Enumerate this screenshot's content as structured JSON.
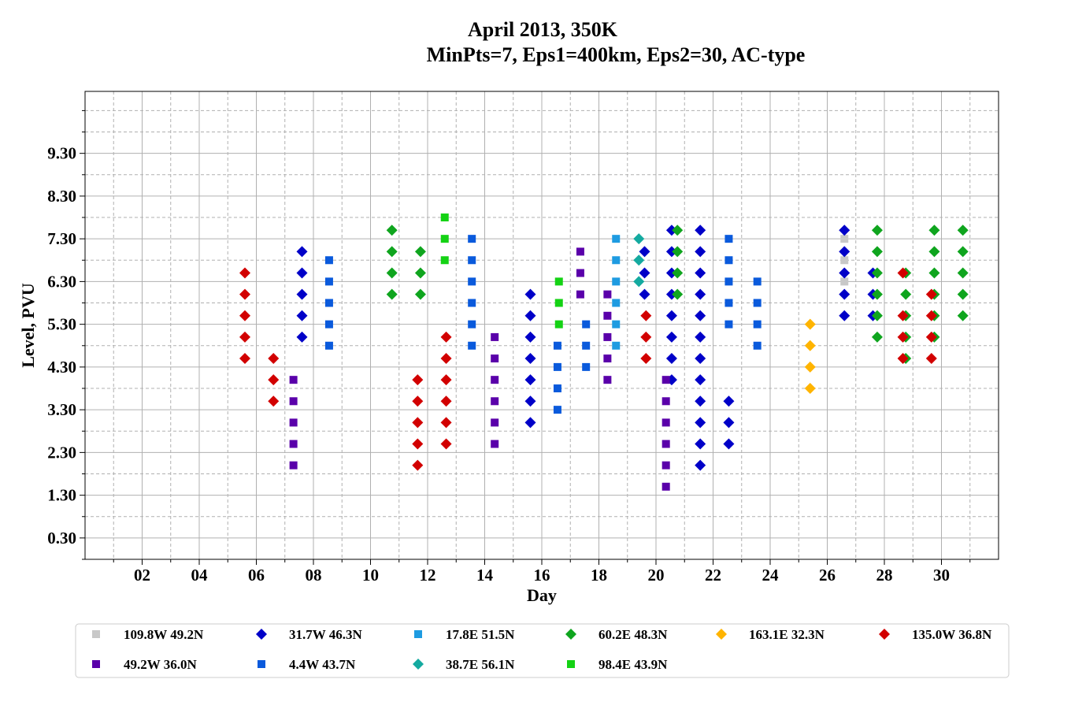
{
  "chart_data": {
    "type": "scatter",
    "title_line1": "April 2013, 350K",
    "title_line2": "MinPts=7, Eps1=400km, Eps2=30, AC-type",
    "xlabel": "Day",
    "ylabel": "Level, PVU",
    "xlim": [
      0,
      32
    ],
    "ylim": [
      -0.2,
      10.75
    ],
    "x_ticks": [
      2,
      4,
      6,
      8,
      10,
      12,
      14,
      16,
      18,
      20,
      22,
      24,
      26,
      28,
      30
    ],
    "x_tick_labels": [
      "02",
      "04",
      "06",
      "08",
      "10",
      "12",
      "14",
      "16",
      "18",
      "20",
      "22",
      "24",
      "26",
      "28",
      "30"
    ],
    "x_minor_ticks": [
      1,
      3,
      5,
      7,
      9,
      11,
      13,
      15,
      17,
      19,
      21,
      23,
      25,
      27,
      29,
      31
    ],
    "y_ticks": [
      0.3,
      1.3,
      2.3,
      3.3,
      4.3,
      5.3,
      6.3,
      7.3,
      8.3,
      9.3
    ],
    "y_tick_labels": [
      "0.30",
      "1.30",
      "2.30",
      "3.30",
      "4.30",
      "5.30",
      "6.30",
      "7.30",
      "8.30",
      "9.30"
    ],
    "y_minor_ticks": [
      -0.2,
      0.8,
      1.8,
      2.8,
      3.8,
      4.8,
      5.8,
      6.8,
      7.8,
      8.8,
      9.8,
      10.3
    ],
    "grid": true,
    "legend_position": "bottom",
    "series": [
      {
        "name": "109.8W 49.2N",
        "color": "#c8c8c8",
        "marker": "square",
        "points": [
          [
            26.6,
            7.3
          ],
          [
            26.6,
            6.8
          ],
          [
            26.6,
            6.3
          ]
        ]
      },
      {
        "name": "31.7W 46.3N",
        "color": "#0000c8",
        "marker": "diamond",
        "points": [
          [
            7.6,
            7.0
          ],
          [
            7.6,
            6.5
          ],
          [
            7.6,
            6.0
          ],
          [
            7.6,
            5.5
          ],
          [
            7.6,
            5.0
          ],
          [
            15.6,
            6.0
          ],
          [
            15.6,
            5.5
          ],
          [
            15.6,
            5.0
          ],
          [
            15.6,
            4.5
          ],
          [
            15.6,
            4.0
          ],
          [
            15.6,
            3.5
          ],
          [
            15.6,
            3.0
          ],
          [
            19.6,
            7.0
          ],
          [
            19.6,
            6.5
          ],
          [
            19.6,
            6.0
          ],
          [
            20.55,
            7.5
          ],
          [
            20.55,
            7.0
          ],
          [
            20.55,
            6.5
          ],
          [
            20.55,
            6.0
          ],
          [
            20.55,
            5.5
          ],
          [
            20.55,
            5.0
          ],
          [
            20.55,
            4.5
          ],
          [
            20.55,
            4.0
          ],
          [
            21.55,
            7.5
          ],
          [
            21.55,
            7.0
          ],
          [
            21.55,
            6.5
          ],
          [
            21.55,
            6.0
          ],
          [
            21.55,
            5.5
          ],
          [
            21.55,
            5.0
          ],
          [
            21.55,
            4.5
          ],
          [
            21.55,
            4.0
          ],
          [
            21.55,
            3.5
          ],
          [
            21.55,
            3.0
          ],
          [
            21.55,
            2.5
          ],
          [
            21.55,
            2.0
          ],
          [
            22.55,
            3.5
          ],
          [
            22.55,
            3.0
          ],
          [
            22.55,
            2.5
          ],
          [
            26.6,
            7.5
          ],
          [
            26.6,
            7.0
          ],
          [
            26.6,
            6.5
          ],
          [
            26.6,
            6.0
          ],
          [
            26.6,
            5.5
          ],
          [
            27.6,
            6.5
          ],
          [
            27.6,
            6.0
          ],
          [
            27.6,
            5.5
          ]
        ]
      },
      {
        "name": "17.8E 51.5N",
        "color": "#1e9be1",
        "marker": "square",
        "points": [
          [
            18.6,
            7.3
          ],
          [
            18.6,
            6.8
          ],
          [
            18.6,
            6.3
          ],
          [
            18.6,
            5.8
          ],
          [
            18.6,
            5.3
          ],
          [
            18.6,
            4.8
          ]
        ]
      },
      {
        "name": "60.2E 48.3N",
        "color": "#0fa51e",
        "marker": "diamond",
        "points": [
          [
            10.75,
            7.5
          ],
          [
            10.75,
            7.0
          ],
          [
            10.75,
            6.5
          ],
          [
            10.75,
            6.0
          ],
          [
            11.75,
            7.0
          ],
          [
            11.75,
            6.5
          ],
          [
            11.75,
            6.0
          ],
          [
            20.75,
            7.5
          ],
          [
            20.75,
            7.0
          ],
          [
            20.75,
            6.5
          ],
          [
            20.75,
            6.0
          ],
          [
            27.75,
            7.5
          ],
          [
            27.75,
            7.0
          ],
          [
            27.75,
            6.5
          ],
          [
            27.75,
            6.0
          ],
          [
            27.75,
            5.5
          ],
          [
            27.75,
            5.0
          ],
          [
            28.75,
            6.5
          ],
          [
            28.75,
            6.0
          ],
          [
            28.75,
            5.5
          ],
          [
            28.75,
            5.0
          ],
          [
            28.75,
            4.5
          ],
          [
            29.75,
            7.5
          ],
          [
            29.75,
            7.0
          ],
          [
            29.75,
            6.5
          ],
          [
            29.75,
            6.0
          ],
          [
            29.75,
            5.5
          ],
          [
            29.75,
            5.0
          ],
          [
            30.75,
            7.5
          ],
          [
            30.75,
            7.0
          ],
          [
            30.75,
            6.5
          ],
          [
            30.75,
            6.0
          ],
          [
            30.75,
            5.5
          ]
        ]
      },
      {
        "name": "163.1E 32.3N",
        "color": "#ffb400",
        "marker": "diamond",
        "points": [
          [
            25.4,
            5.3
          ],
          [
            25.4,
            4.8
          ],
          [
            25.4,
            4.3
          ],
          [
            25.4,
            3.8
          ]
        ]
      },
      {
        "name": "135.0W 36.8N",
        "color": "#d20000",
        "marker": "diamond",
        "points": [
          [
            5.6,
            6.5
          ],
          [
            5.6,
            6.0
          ],
          [
            5.6,
            5.5
          ],
          [
            5.6,
            5.0
          ],
          [
            5.6,
            4.5
          ],
          [
            6.6,
            4.5
          ],
          [
            6.6,
            4.0
          ],
          [
            6.6,
            3.5
          ],
          [
            11.65,
            4.0
          ],
          [
            11.65,
            3.5
          ],
          [
            11.65,
            3.0
          ],
          [
            11.65,
            2.5
          ],
          [
            11.65,
            2.0
          ],
          [
            12.65,
            5.0
          ],
          [
            12.65,
            4.5
          ],
          [
            12.65,
            4.0
          ],
          [
            12.65,
            3.5
          ],
          [
            12.65,
            3.0
          ],
          [
            12.65,
            2.5
          ],
          [
            19.65,
            5.5
          ],
          [
            19.65,
            5.0
          ],
          [
            19.65,
            4.5
          ],
          [
            28.65,
            6.5
          ],
          [
            28.65,
            5.5
          ],
          [
            28.65,
            5.0
          ],
          [
            28.65,
            4.5
          ],
          [
            29.65,
            6.0
          ],
          [
            29.65,
            5.5
          ],
          [
            29.65,
            5.0
          ],
          [
            29.65,
            4.5
          ]
        ]
      },
      {
        "name": "49.2W 36.0N",
        "color": "#5a00aa",
        "marker": "square",
        "points": [
          [
            7.3,
            4.0
          ],
          [
            7.3,
            3.5
          ],
          [
            7.3,
            3.0
          ],
          [
            7.3,
            2.5
          ],
          [
            7.3,
            2.0
          ],
          [
            14.35,
            5.0
          ],
          [
            14.35,
            4.5
          ],
          [
            14.35,
            4.0
          ],
          [
            14.35,
            3.5
          ],
          [
            14.35,
            3.0
          ],
          [
            14.35,
            2.5
          ],
          [
            17.35,
            7.0
          ],
          [
            17.35,
            6.5
          ],
          [
            17.35,
            6.0
          ],
          [
            18.3,
            6.0
          ],
          [
            18.3,
            5.5
          ],
          [
            18.3,
            5.0
          ],
          [
            18.3,
            4.5
          ],
          [
            18.3,
            4.0
          ],
          [
            20.35,
            4.0
          ],
          [
            20.35,
            3.5
          ],
          [
            20.35,
            3.0
          ],
          [
            20.35,
            2.5
          ],
          [
            20.35,
            2.0
          ],
          [
            20.35,
            1.5
          ]
        ]
      },
      {
        "name": "4.4W 43.7N",
        "color": "#0a5adc",
        "marker": "square",
        "points": [
          [
            8.55,
            6.8
          ],
          [
            8.55,
            6.3
          ],
          [
            8.55,
            5.8
          ],
          [
            8.55,
            5.3
          ],
          [
            8.55,
            4.8
          ],
          [
            13.55,
            7.3
          ],
          [
            13.55,
            6.8
          ],
          [
            13.55,
            6.3
          ],
          [
            13.55,
            5.8
          ],
          [
            13.55,
            5.3
          ],
          [
            13.55,
            4.8
          ],
          [
            16.55,
            4.8
          ],
          [
            16.55,
            4.3
          ],
          [
            16.55,
            3.8
          ],
          [
            16.55,
            3.3
          ],
          [
            17.55,
            5.3
          ],
          [
            17.55,
            4.8
          ],
          [
            17.55,
            4.3
          ],
          [
            22.55,
            7.3
          ],
          [
            22.55,
            6.8
          ],
          [
            22.55,
            6.3
          ],
          [
            22.55,
            5.8
          ],
          [
            22.55,
            5.3
          ],
          [
            23.55,
            6.3
          ],
          [
            23.55,
            5.8
          ],
          [
            23.55,
            5.3
          ],
          [
            23.55,
            4.8
          ]
        ]
      },
      {
        "name": "38.7E 56.1N",
        "color": "#14aaa0",
        "marker": "diamond",
        "points": [
          [
            19.4,
            7.3
          ],
          [
            19.4,
            6.8
          ],
          [
            19.4,
            6.3
          ]
        ]
      },
      {
        "name": "98.4E 43.9N",
        "color": "#14d214",
        "marker": "square",
        "points": [
          [
            12.6,
            7.8
          ],
          [
            12.6,
            7.3
          ],
          [
            12.6,
            6.8
          ],
          [
            16.6,
            6.3
          ],
          [
            16.6,
            5.8
          ],
          [
            16.6,
            5.3
          ]
        ]
      }
    ]
  }
}
